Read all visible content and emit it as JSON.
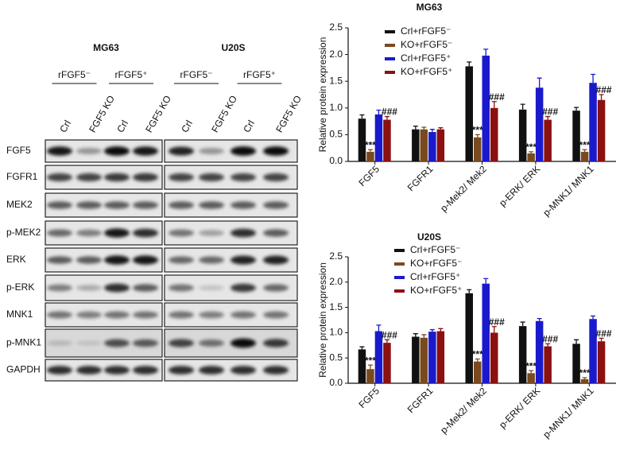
{
  "blot": {
    "panels": [
      {
        "title": "MG63",
        "groups": [
          "rFGF5⁻",
          "rFGF5⁺"
        ],
        "lanes": [
          "Crl",
          "FGF5 KO",
          "Crl",
          "FGF5 KO"
        ]
      },
      {
        "title": "U20S",
        "groups": [
          "rFGF5⁻",
          "rFGF5⁺"
        ],
        "lanes": [
          "Crl",
          "FGF5 KO",
          "Crl",
          "FGF5 KO"
        ]
      }
    ],
    "rows": [
      "FGF5",
      "FGFR1",
      "MEK2",
      "p-MEK2",
      "ERK",
      "p-ERK",
      "MNK1",
      "p-MNK1",
      "GAPDH"
    ]
  },
  "chart_data": [
    {
      "type": "bar",
      "title": "MG63",
      "y_label": "Relative protein expression",
      "categories": [
        "FGF5",
        "FGFR1",
        "p-Mek2/ Mek2",
        "p-ERK/ ERK",
        "p-MNK1/ MNK1"
      ],
      "series": [
        {
          "name": "Crl+rFGF5⁻",
          "color": "#111111",
          "values": [
            0.8,
            0.6,
            1.78,
            0.97,
            0.95
          ],
          "errors": [
            0.07,
            0.06,
            0.08,
            0.1,
            0.06
          ],
          "annotations": [
            null,
            null,
            null,
            null,
            null
          ]
        },
        {
          "name": "KO+rFGF5⁻",
          "color": "#7a4a1e",
          "values": [
            0.18,
            0.6,
            0.45,
            0.15,
            0.18
          ],
          "errors": [
            0.04,
            0.04,
            0.05,
            0.03,
            0.04
          ],
          "annotations": [
            "***",
            null,
            "***",
            "***",
            "***"
          ]
        },
        {
          "name": "Crl+rFGF5⁺",
          "color": "#1a1acc",
          "values": [
            0.88,
            0.55,
            1.98,
            1.38,
            1.47
          ],
          "errors": [
            0.08,
            0.05,
            0.12,
            0.18,
            0.16
          ],
          "annotations": [
            null,
            null,
            null,
            null,
            null
          ]
        },
        {
          "name": "KO+rFGF5⁺",
          "color": "#8b1010",
          "values": [
            0.78,
            0.6,
            1.0,
            0.78,
            1.15
          ],
          "errors": [
            0.06,
            0.03,
            0.12,
            0.06,
            0.1
          ],
          "annotations": [
            "###",
            null,
            "###",
            "###",
            "###"
          ]
        }
      ],
      "ylim": [
        0,
        2.5
      ],
      "yticks": [
        {
          "value": 0,
          "label": "0.0"
        },
        0.5,
        {
          "value": 1,
          "label": "1.0"
        },
        1.5,
        {
          "value": 2,
          "label": "2.0"
        },
        2.5
      ]
    },
    {
      "type": "bar",
      "title": "U20S",
      "y_label": "Relative protein expression",
      "categories": [
        "FGF5",
        "FGFR1",
        "p-Mek2/ Mek2",
        "p-ERK/ ERK",
        "p-MNK1/ MNK1"
      ],
      "series": [
        {
          "name": "Crl+rFGF5⁻",
          "color": "#111111",
          "values": [
            0.67,
            0.92,
            1.78,
            1.13,
            0.78
          ],
          "errors": [
            0.05,
            0.06,
            0.07,
            0.08,
            0.08
          ],
          "annotations": [
            null,
            null,
            null,
            null,
            null
          ]
        },
        {
          "name": "KO+rFGF5⁻",
          "color": "#7a4a1e",
          "values": [
            0.28,
            0.9,
            0.43,
            0.2,
            0.08
          ],
          "errors": [
            0.08,
            0.06,
            0.05,
            0.05,
            0.03
          ],
          "annotations": [
            "***",
            null,
            "***",
            "***",
            "***"
          ]
        },
        {
          "name": "Crl+rFGF5⁺",
          "color": "#1a1acc",
          "values": [
            1.03,
            1.02,
            1.97,
            1.23,
            1.27
          ],
          "errors": [
            0.12,
            0.04,
            0.1,
            0.05,
            0.06
          ],
          "annotations": [
            null,
            null,
            null,
            null,
            null
          ]
        },
        {
          "name": "KO+rFGF5⁺",
          "color": "#8b1010",
          "values": [
            0.8,
            1.03,
            1.0,
            0.73,
            0.83
          ],
          "errors": [
            0.06,
            0.05,
            0.12,
            0.05,
            0.06
          ],
          "annotations": [
            "###",
            null,
            "###",
            "###",
            "###"
          ]
        }
      ],
      "ylim": [
        0,
        2.5
      ],
      "yticks": [
        {
          "value": 0,
          "label": "0.0"
        },
        0.5,
        {
          "value": 1,
          "label": "1.0"
        },
        1.5,
        {
          "value": 2,
          "label": "2.0"
        },
        2.5
      ]
    }
  ]
}
